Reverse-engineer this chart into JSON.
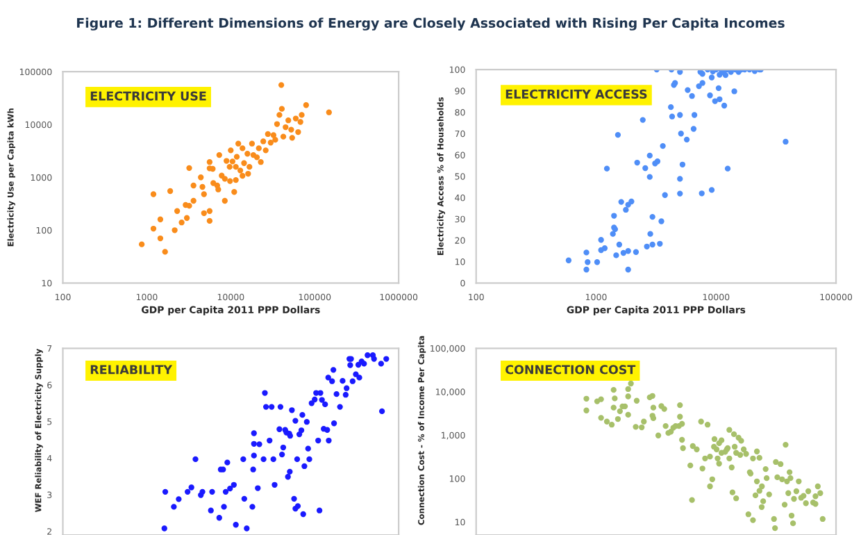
{
  "chart_data": [
    {
      "type": "scatter",
      "title": "ELECTRICITY USE",
      "annotations": [
        "Figure 1: Different Dimensions of Energy are Closely Associated with Rising Per Capita Incomes"
      ],
      "xlabel": "GDP per Capita 2011 PPP Dollars",
      "ylabel": "Electricity Use per Capita kWh",
      "log": "xy",
      "marker": "circle",
      "xlim": [
        100,
        1000000
      ],
      "ylim": [
        10,
        100000
      ],
      "xticks": [
        100,
        1000,
        10000,
        100000,
        1000000
      ],
      "yticks": [
        10,
        100,
        1000,
        10000,
        100000
      ],
      "x": [
        870,
        1200,
        1200,
        1450,
        1450,
        1650,
        1900,
        2300,
        2150,
        2600,
        2900,
        3000,
        3200,
        3200,
        3600,
        3600,
        4400,
        4600,
        4800,
        4800,
        5600,
        5600,
        5600,
        5600,
        6100,
        6200,
        6900,
        7100,
        7800,
        8500,
        8500,
        9800,
        9700,
        10500,
        11000,
        10000,
        11500,
        11800,
        12300,
        13000,
        13800,
        14400,
        15800,
        16700,
        17900,
        18600,
        20500,
        21600,
        22800,
        24400,
        26100,
        27700,
        29900,
        32300,
        33900,
        35600,
        38000,
        40600,
        40000,
        42300,
        45000,
        48500,
        52500,
        53900,
        59500,
        63500,
        67600,
        70000,
        79000,
        148000,
        7300,
        8900,
        11500,
        13800,
        16100
      ],
      "series": [
        {
          "color": "#f98c1b",
          "values": [
            54,
            480,
            107,
            160,
            70,
            39,
            550,
            230,
            100,
            140,
            300,
            170,
            1500,
            290,
            700,
            360,
            1000,
            660,
            210,
            480,
            1950,
            1480,
            230,
            150,
            1450,
            780,
            700,
            590,
            1080,
            940,
            360,
            850,
            1580,
            2000,
            530,
            3250,
            1580,
            2450,
            4350,
            1350,
            3550,
            1860,
            2800,
            1580,
            4350,
            2650,
            2400,
            3550,
            1950,
            4800,
            3250,
            6600,
            4550,
            6300,
            5150,
            10200,
            15200,
            19800,
            56000,
            5900,
            8900,
            12000,
            8000,
            5600,
            13000,
            7200,
            11200,
            15200,
            23300,
            17000,
            2650,
            2050,
            890,
            1070,
            1170
          ]
        }
      ]
    },
    {
      "type": "scatter",
      "title": "ELECTRICITY ACCESS",
      "xlabel": "GDP per Capita 2011 PPP Dollars",
      "ylabel": "Electricity Access % of Households",
      "log": "x",
      "marker": "circle",
      "xlim": [
        100,
        100000
      ],
      "ylim": [
        0,
        100
      ],
      "xticks": [
        100,
        1000,
        10000,
        100000
      ],
      "yticks": [
        0,
        10,
        20,
        30,
        40,
        50,
        60,
        70,
        80,
        90,
        100
      ],
      "x": [
        590,
        830,
        830,
        850,
        1020,
        1100,
        1100,
        1180,
        1230,
        1380,
        1410,
        1410,
        1440,
        1470,
        1520,
        1560,
        1620,
        1690,
        1770,
        1850,
        1850,
        1850,
        1970,
        2150,
        2200,
        2450,
        2570,
        2650,
        2800,
        2800,
        2830,
        2950,
        2950,
        3100,
        3250,
        3200,
        3400,
        3500,
        3600,
        3750,
        4200,
        4250,
        4300,
        4450,
        4550,
        5000,
        5000,
        5000,
        5000,
        5100,
        5250,
        5700,
        5800,
        6300,
        6500,
        6600,
        7200,
        7400,
        7600,
        7700,
        7700,
        8500,
        8900,
        9200,
        9200,
        10000,
        9800,
        10500,
        10700,
        10700,
        11000,
        11700,
        12000,
        12500,
        12300,
        13300,
        14200,
        14500,
        15400,
        16200,
        17300,
        19000,
        21000,
        23000,
        23600,
        38000,
        9400,
        11500
      ],
      "series": [
        {
          "color": "#4f8ef7",
          "values": [
            10.6,
            14.3,
            6.3,
            9.8,
            9.8,
            20.2,
            15.4,
            16.3,
            53.6,
            23,
            26,
            31.5,
            25.2,
            13,
            69.4,
            18,
            38,
            14.1,
            34.3,
            15,
            36.7,
            6.3,
            38.2,
            14.5,
            56.4,
            76.4,
            53.8,
            17.1,
            49.7,
            59.7,
            23,
            18,
            31,
            56,
            57,
            100,
            18.4,
            28.9,
            64.2,
            41.2,
            82.4,
            100,
            78,
            92.8,
            93.7,
            98.9,
            48.8,
            41.9,
            78.7,
            70,
            55.5,
            67.2,
            90.4,
            87.6,
            72.2,
            78.7,
            92.2,
            98.9,
            42,
            93.7,
            98,
            100,
            87.9,
            96.3,
            43.6,
            100,
            85.2,
            91.3,
            86.1,
            97.6,
            100,
            83.1,
            97.4,
            53.6,
            100,
            98.9,
            89.8,
            100,
            98.9,
            100,
            100,
            100,
            99.3,
            100,
            100,
            66.2,
            99.1,
            98.7
          ]
        }
      ]
    },
    {
      "type": "scatter",
      "title": "RELIABILITY",
      "ylabel": "WEF Reliability of Electricity Supply",
      "log": "x",
      "marker": "circle",
      "tick_labels": "y",
      "xlim": [
        100,
        1000000
      ],
      "ylim": [
        1.9,
        7
      ],
      "yticks": [
        2,
        3,
        4,
        5,
        6,
        7
      ],
      "x": [
        1620,
        1660,
        2100,
        2400,
        3060,
        3400,
        3800,
        4400,
        4600,
        5800,
        6000,
        7300,
        7600,
        8100,
        8300,
        8700,
        9100,
        9800,
        10900,
        11500,
        14100,
        14500,
        15500,
        18100,
        18500,
        18900,
        18900,
        18900,
        21000,
        21900,
        24600,
        25500,
        26300,
        30700,
        29000,
        32200,
        33300,
        38000,
        39100,
        40800,
        42200,
        44500,
        46000,
        48000,
        49700,
        50500,
        51000,
        53500,
        56800,
        58900,
        58900,
        61800,
        63000,
        65600,
        69400,
        71300,
        73000,
        75400,
        80500,
        83500,
        86300,
        91900,
        100000,
        104000,
        110000,
        114000,
        117000,
        122000,
        128000,
        133000,
        141000,
        145000,
        147000,
        161000,
        167000,
        182000,
        200000,
        215000,
        234000,
        240000,
        259000,
        265000,
        283000,
        309000,
        331000,
        340000,
        362000,
        387000,
        426000,
        493000,
        509000,
        618000,
        633000,
        712000,
        271000,
        170000
      ],
      "series": [
        {
          "color": "#1a1aff",
          "values": [
            2.08,
            3.08,
            2.67,
            2.88,
            3.08,
            3.2,
            3.97,
            2.99,
            3.08,
            2.57,
            3.08,
            2.37,
            3.69,
            3.69,
            2.67,
            3.08,
            3.88,
            3.17,
            3.27,
            2.18,
            3.97,
            2.89,
            2.08,
            2.67,
            3.69,
            4.07,
            4.68,
            4.39,
            3.18,
            4.38,
            3.97,
            5.78,
            5.4,
            5.4,
            4.48,
            3.97,
            3.27,
            4.79,
            5.4,
            4.1,
            4.29,
            4.77,
            4.7,
            3.49,
            4.67,
            3.63,
            4.61,
            5.31,
            2.89,
            5.02,
            2.62,
            3.97,
            2.69,
            4.65,
            4.76,
            5.18,
            2.47,
            3.78,
            4.99,
            4.26,
            3.97,
            5.5,
            5.6,
            5.78,
            4.48,
            2.57,
            5.78,
            5.59,
            4.8,
            5.47,
            4.77,
            6.2,
            4.48,
            6.1,
            6.41,
            5.75,
            5.4,
            6.11,
            5.73,
            5.91,
            6.71,
            6.54,
            6.1,
            6.29,
            6.55,
            6.2,
            6.64,
            6.58,
            6.81,
            6.81,
            6.71,
            6.58,
            5.28,
            6.71,
            6.71,
            4.95
          ]
        }
      ]
    },
    {
      "type": "scatter",
      "title": "CONNECTION COST",
      "ylabel": "Connection Cost - % of Income Per Capita",
      "log": "xy",
      "marker": "circle",
      "tick_labels": "y",
      "xlim": [
        100,
        100000
      ],
      "ylim": [
        5,
        100000
      ],
      "yticks": [
        10,
        100,
        {
          "value": 1000,
          "label": "1,000"
        },
        {
          "value": 10000,
          "label": "10,000"
        },
        {
          "value": 100000,
          "label": "100,000"
        }
      ],
      "x": [
        830,
        830,
        1020,
        1100,
        1100,
        1230,
        1350,
        1400,
        1430,
        1400,
        1520,
        1580,
        1660,
        1740,
        1850,
        1850,
        1950,
        1850,
        2140,
        2180,
        2400,
        2500,
        2800,
        2950,
        2950,
        3000,
        3000,
        3300,
        3500,
        3700,
        3800,
        4000,
        4200,
        4400,
        4600,
        4900,
        5000,
        5000,
        5200,
        5300,
        5200,
        6100,
        6300,
        6400,
        6900,
        7500,
        7700,
        8100,
        8500,
        8900,
        8900,
        9300,
        9600,
        9700,
        10100,
        10300,
        10600,
        10600,
        11100,
        11100,
        11900,
        12300,
        12500,
        12900,
        12900,
        13500,
        13700,
        14100,
        14300,
        14700,
        14700,
        15400,
        15900,
        16200,
        17000,
        17800,
        18600,
        19100,
        19400,
        20300,
        20300,
        21300,
        21900,
        21900,
        23000,
        23000,
        24000,
        24100,
        24700,
        25900,
        26400,
        27700,
        30400,
        31000,
        31500,
        32400,
        34500,
        35500,
        37300,
        38000,
        39000,
        40000,
        41000,
        41700,
        42600,
        43800,
        44600,
        46700,
        48900,
        51200,
        53600,
        56100,
        58700,
        64400,
        67400,
        70500,
        73900,
        77400,
        67400
      ],
      "series": [
        {
          "color": "#a7c06a",
          "values": [
            6900,
            3700,
            6000,
            6700,
            2500,
            2050,
            1740,
            11000,
            7000,
            4300,
            2350,
            3550,
            4600,
            4600,
            11500,
            2950,
            15400,
            7800,
            1550,
            6200,
            1510,
            2050,
            7400,
            8000,
            2800,
            4300,
            2450,
            980,
            4650,
            4000,
            1620,
            1120,
            1200,
            1480,
            1620,
            1620,
            4900,
            2650,
            1820,
            500,
            780,
            200,
            32,
            560,
            470,
            2050,
            170,
            290,
            1740,
            320,
            66,
            96,
            540,
            810,
            470,
            290,
            650,
            220,
            390,
            760,
            410,
            470,
            500,
            1320,
            290,
            180,
            48,
            1050,
            540,
            390,
            35,
            870,
            350,
            740,
            470,
            370,
            15,
            140,
            130,
            290,
            11,
            41,
            420,
            86,
            52,
            300,
            22,
            66,
            30,
            165,
            102,
            43,
            11.7,
            7.2,
            240,
            107,
            215,
            96,
            25,
            600,
            86,
            46,
            140,
            102,
            14,
            9.3,
            34,
            51,
            86,
            36,
            40,
            27,
            51,
            28,
            39,
            66,
            46,
            11.7,
            26
          ]
        }
      ]
    }
  ]
}
